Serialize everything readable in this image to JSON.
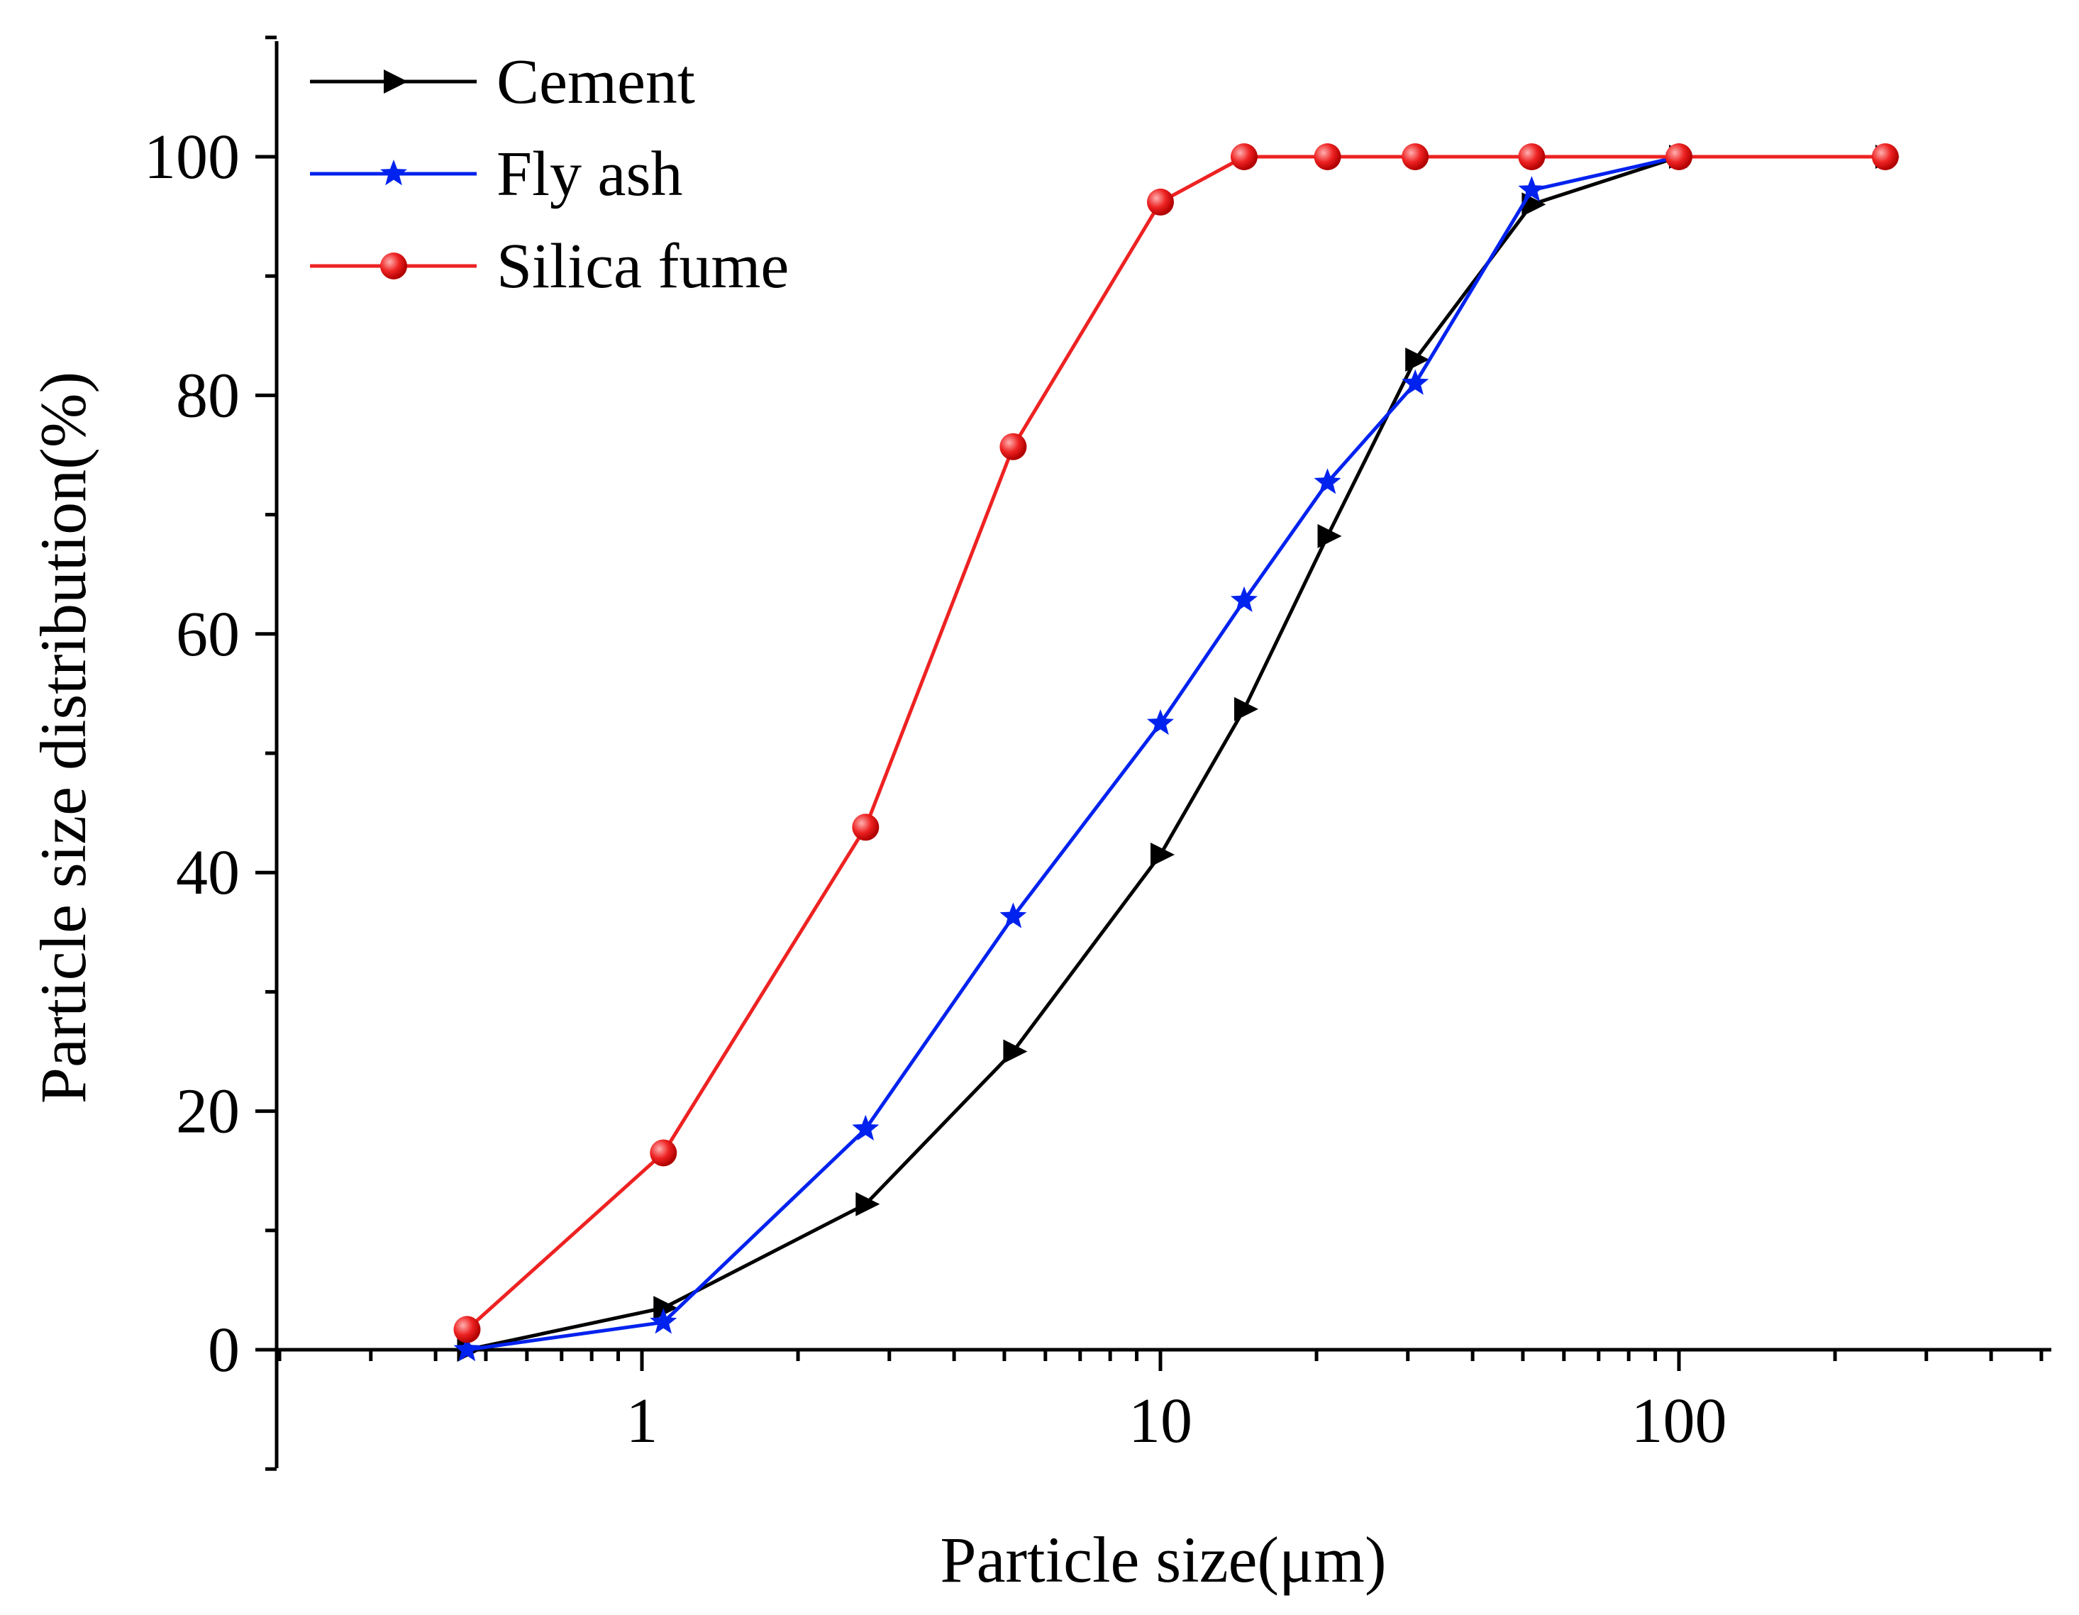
{
  "chart_data": {
    "type": "line",
    "xlabel": "Particle size(μm)",
    "ylabel": "Particle size distribution(%)",
    "xscale": "log",
    "xlim": [
      0.2,
      500
    ],
    "ylim": [
      -10,
      110
    ],
    "xticks": [
      {
        "value": 1,
        "label": "1"
      },
      {
        "value": 10,
        "label": "10"
      },
      {
        "value": 100,
        "label": "100"
      }
    ],
    "yticks": [
      {
        "value": 0,
        "label": "0"
      },
      {
        "value": 20,
        "label": "20"
      },
      {
        "value": 40,
        "label": "40"
      },
      {
        "value": 60,
        "label": "60"
      },
      {
        "value": 80,
        "label": "80"
      },
      {
        "value": 100,
        "label": "100"
      }
    ],
    "legend_position": "top-left",
    "series": [
      {
        "name": "Cement",
        "color": "#000000",
        "marker": "triangle-right",
        "x": [
          0.46,
          1.1,
          2.7,
          5.2,
          10,
          14.5,
          21,
          31,
          52,
          100,
          250
        ],
        "y": [
          0,
          3.5,
          12.2,
          25,
          41.5,
          53.7,
          68.2,
          83,
          96,
          100,
          100
        ]
      },
      {
        "name": "Fly ash",
        "color": "#0022ee",
        "marker": "star",
        "x": [
          0.46,
          1.1,
          2.7,
          5.2,
          10,
          14.5,
          21,
          31,
          52,
          100
        ],
        "y": [
          0,
          2.3,
          18.5,
          36.3,
          52.5,
          62.8,
          72.7,
          81,
          97.2,
          100
        ]
      },
      {
        "name": "Silica fume",
        "color": "#ee2222",
        "marker": "circle",
        "x": [
          0.46,
          1.1,
          2.7,
          5.2,
          10,
          14.5,
          21,
          31,
          52,
          100,
          250
        ],
        "y": [
          1.7,
          16.5,
          43.8,
          75.7,
          96.2,
          100,
          100,
          100,
          100,
          100,
          100
        ]
      }
    ]
  }
}
